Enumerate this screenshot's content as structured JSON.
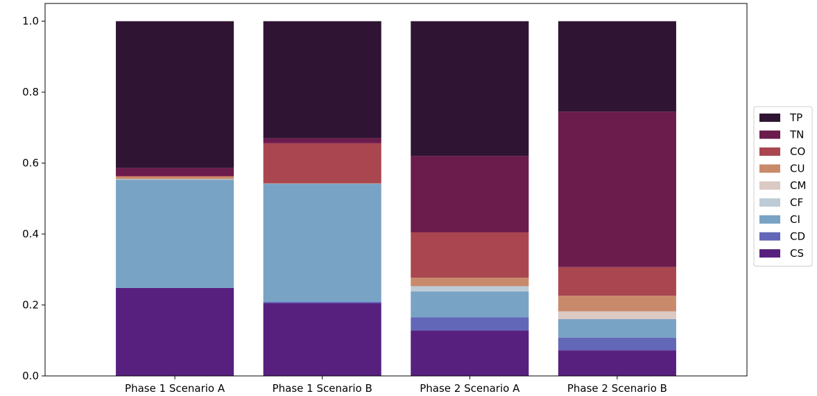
{
  "chart_data": {
    "type": "bar",
    "stacked": true,
    "categories": [
      "Phase 1 Scenario A",
      "Phase 1 Scenario B",
      "Phase 2 Scenario A",
      "Phase 2 Scenario B"
    ],
    "series": [
      {
        "name": "CS",
        "color": "#57207f",
        "values": [
          0.248,
          0.205,
          0.128,
          0.072
        ]
      },
      {
        "name": "CD",
        "color": "#6367b7",
        "values": [
          0.0,
          0.004,
          0.037,
          0.036
        ]
      },
      {
        "name": "CI",
        "color": "#79a3c5",
        "values": [
          0.305,
          0.333,
          0.073,
          0.052
        ]
      },
      {
        "name": "CF",
        "color": "#bccbd5",
        "values": [
          0.002,
          0.0,
          0.015,
          0.0
        ]
      },
      {
        "name": "CM",
        "color": "#dbc9c4",
        "values": [
          0.0,
          0.0,
          0.0,
          0.022
        ]
      },
      {
        "name": "CU",
        "color": "#c88a6b",
        "values": [
          0.007,
          0.001,
          0.024,
          0.044
        ]
      },
      {
        "name": "CO",
        "color": "#a9464f",
        "values": [
          0.002,
          0.113,
          0.128,
          0.081
        ]
      },
      {
        "name": "TN",
        "color": "#6b1b4c",
        "values": [
          0.022,
          0.014,
          0.215,
          0.438
        ]
      },
      {
        "name": "TP",
        "color": "#301433",
        "values": [
          0.414,
          0.33,
          0.38,
          0.255
        ]
      }
    ],
    "legend_order": [
      "TP",
      "TN",
      "CO",
      "CU",
      "CM",
      "CF",
      "CI",
      "CD",
      "CS"
    ],
    "yticks": [
      "0.0",
      "0.2",
      "0.4",
      "0.6",
      "0.8",
      "1.0"
    ],
    "ylim": [
      0,
      1.05
    ],
    "xlabel": "",
    "ylabel": "",
    "title": "",
    "grid": false,
    "legend_position": "right"
  }
}
